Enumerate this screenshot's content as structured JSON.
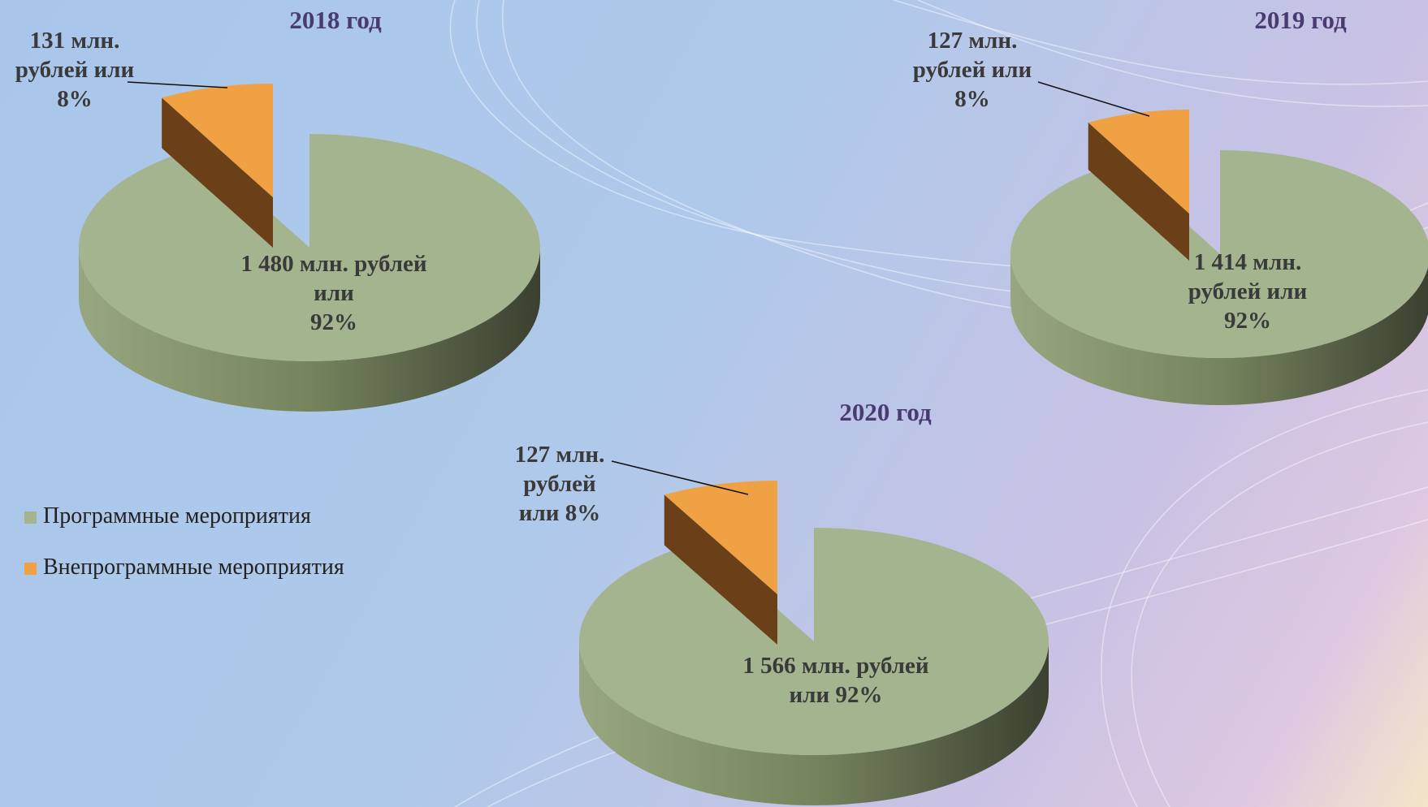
{
  "chart_data": [
    {
      "type": "pie",
      "title": "2018 год",
      "categories": [
        "Программные мероприятия",
        "Внепрограммные мероприятия"
      ],
      "values": [
        92,
        8
      ],
      "value_labels": [
        "1 480 млн. рублей\nили\n92%",
        "131 млн.\nрублей или\n8%"
      ],
      "colors": [
        "#a4b48e",
        "#f0a143"
      ]
    },
    {
      "type": "pie",
      "title": "2019 год",
      "categories": [
        "Программные мероприятия",
        "Внепрограммные мероприятия"
      ],
      "values": [
        92,
        8
      ],
      "value_labels": [
        "1 414 млн. рублей или\n92%",
        "127 млн.\nрублей или\n8%"
      ],
      "colors": [
        "#a4b48e",
        "#f0a143"
      ]
    },
    {
      "type": "pie",
      "title": "2020 год",
      "categories": [
        "Программные мероприятия",
        "Внепрограммные мероприятия"
      ],
      "values": [
        92,
        8
      ],
      "value_labels": [
        "1 566 млн. рублей\nили 92%",
        "127 млн.\nрублей\nили 8%"
      ],
      "colors": [
        "#a4b48e",
        "#f0a143"
      ]
    }
  ]
}
